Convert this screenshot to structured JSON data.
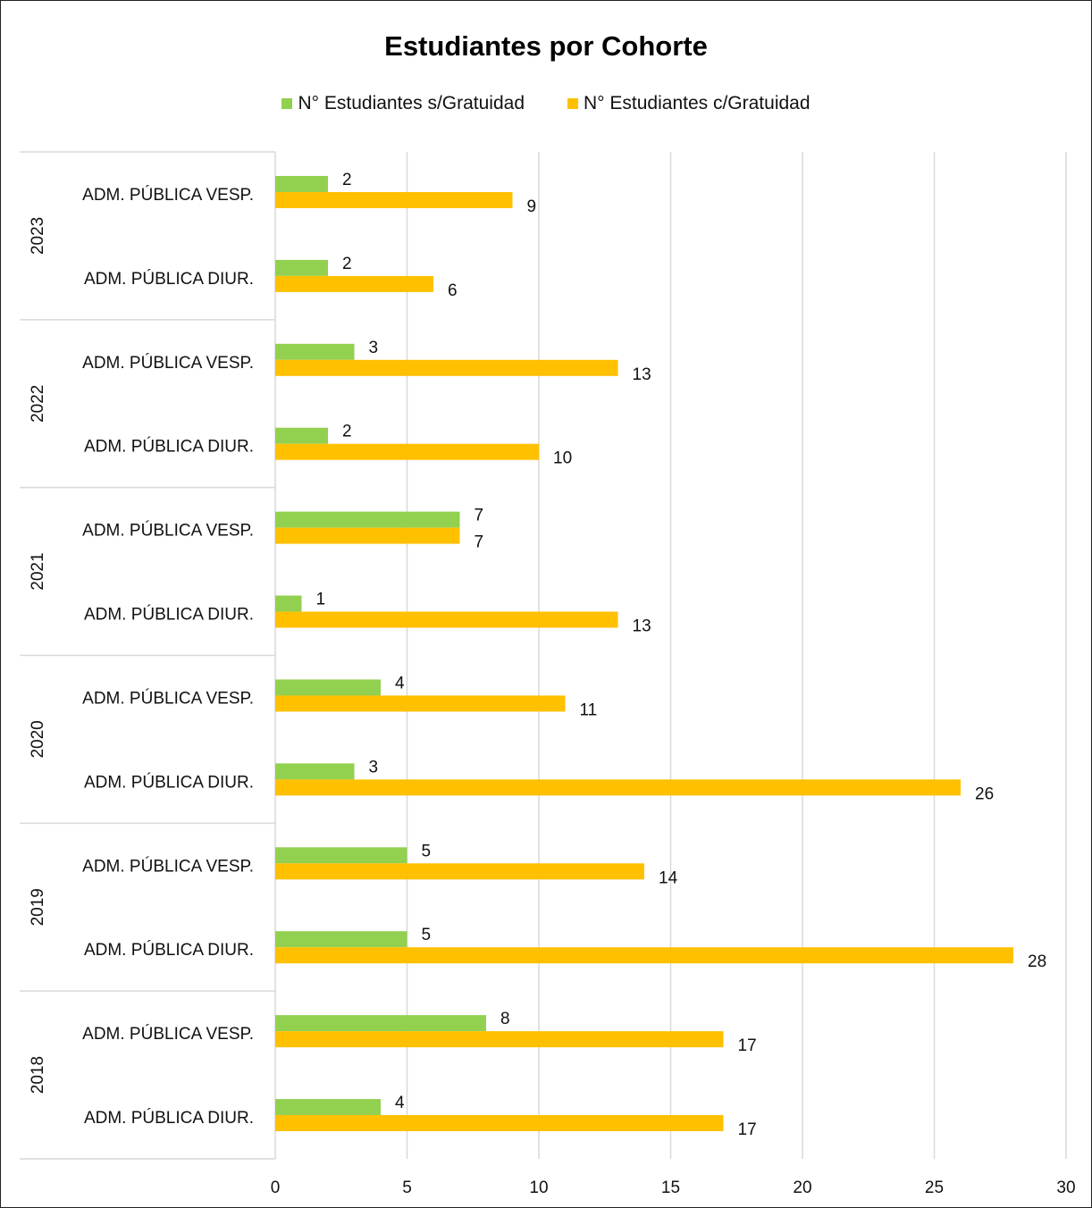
{
  "chart_data": {
    "type": "bar",
    "orientation": "horizontal",
    "title": "Estudiantes por Cohorte",
    "xlim": [
      0,
      30
    ],
    "xticks": [
      0,
      5,
      10,
      15,
      20,
      25,
      30
    ],
    "grid": true,
    "legend_position": "top",
    "groups": [
      {
        "year": "2023",
        "categories": [
          "ADM. PÚBLICA VESP.",
          "ADM. PÚBLICA DIUR."
        ]
      },
      {
        "year": "2022",
        "categories": [
          "ADM. PÚBLICA VESP.",
          "ADM. PÚBLICA DIUR."
        ]
      },
      {
        "year": "2021",
        "categories": [
          "ADM. PÚBLICA VESP.",
          "ADM. PÚBLICA DIUR."
        ]
      },
      {
        "year": "2020",
        "categories": [
          "ADM. PÚBLICA VESP.",
          "ADM. PÚBLICA DIUR."
        ]
      },
      {
        "year": "2019",
        "categories": [
          "ADM. PÚBLICA VESP.",
          "ADM. PÚBLICA DIUR."
        ]
      },
      {
        "year": "2018",
        "categories": [
          "ADM. PÚBLICA VESP.",
          "ADM. PÚBLICA DIUR."
        ]
      }
    ],
    "series": [
      {
        "name": "N° Estudiantes s/Gratuidad",
        "color": "#92d050",
        "values": [
          2,
          2,
          3,
          2,
          7,
          1,
          4,
          3,
          5,
          5,
          8,
          4
        ]
      },
      {
        "name": "N° Estudiantes c/Gratuidad",
        "color": "#ffc000",
        "values": [
          9,
          6,
          13,
          10,
          7,
          13,
          11,
          26,
          14,
          28,
          17,
          17
        ]
      }
    ]
  }
}
